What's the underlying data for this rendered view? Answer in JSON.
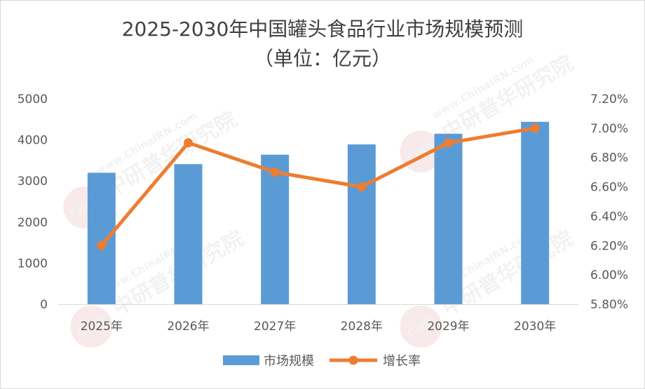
{
  "title_line1": "2025-2030年中国罐头食品行业市场规模预测",
  "title_line2": "（单位：亿元）",
  "watermark": {
    "text_url": "www.ChinaIRN.com",
    "text_org": "中研普华研究院",
    "logo_text": "CIRN"
  },
  "chart_data": {
    "type": "bar",
    "categories": [
      "2025年",
      "2026年",
      "2027年",
      "2028年",
      "2029年",
      "2030年"
    ],
    "series": [
      {
        "name": "市场规模",
        "type": "bar",
        "axis": "left",
        "color": "#5b9bd5",
        "values": [
          3200,
          3410,
          3640,
          3890,
          4150,
          4440
        ]
      },
      {
        "name": "增长率",
        "type": "line",
        "axis": "right",
        "color": "#ed7d31",
        "values": [
          6.2,
          6.9,
          6.7,
          6.6,
          6.9,
          7.0
        ]
      }
    ],
    "y_left": {
      "min": 0,
      "max": 5000,
      "step": 1000,
      "ticks": [
        "0",
        "1000",
        "2000",
        "3000",
        "4000",
        "5000"
      ]
    },
    "y_right": {
      "min": 5.8,
      "max": 7.2,
      "step": 0.2,
      "ticks": [
        "5.80%",
        "6.00%",
        "6.20%",
        "6.40%",
        "6.60%",
        "6.80%",
        "7.00%",
        "7.20%"
      ]
    },
    "legend_position": "bottom",
    "grid": false
  }
}
